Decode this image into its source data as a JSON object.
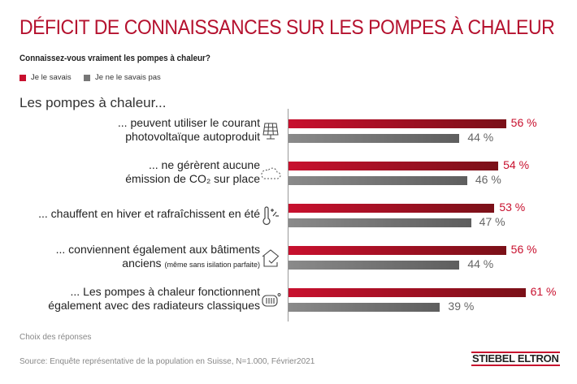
{
  "title": "DÉFICIT DE CONNAISSANCES SUR LES POMPES À CHALEUR",
  "question": "Connaissez-vous vraiment les pompes à chaleur?",
  "intro": "Les pompes à chaleur...",
  "footnote": "Choix des réponses",
  "source": "Source: Enquête représentative de la population en Suisse, N=1.000, Février2021",
  "logo": "STIEBEL ELTRON",
  "chart_data": {
    "type": "bar",
    "orientation": "horizontal",
    "categories": [
      {
        "line1": "... peuvent utiliser le courant",
        "line2": "photovoltaïque autoproduit",
        "note": "",
        "icon": "solar-panel-icon"
      },
      {
        "line1": "... ne gérèrent aucune",
        "line2": "émission de CO₂ sur place",
        "note": "",
        "icon": "cloud-icon"
      },
      {
        "line1": "... chauffent en hiver et rafraîchissent en été",
        "line2": "",
        "note": "",
        "icon": "thermometer-icon"
      },
      {
        "line1": "... conviennent également aux bâtiments",
        "line2": "anciens",
        "note": "(même sans isilation parfaite)",
        "icon": "house-check-icon"
      },
      {
        "line1": "... Les pompes à chaleur fonctionnent",
        "line2": "également avec des radiateurs classiques",
        "note": "",
        "icon": "radiator-icon"
      }
    ],
    "series": [
      {
        "name": "Je le savais",
        "color": "#c8102e",
        "values": [
          56,
          54,
          53,
          56,
          61
        ],
        "labels": [
          "56 %",
          "54 %",
          "53 %",
          "56 %",
          "61 %"
        ]
      },
      {
        "name": "Je ne le savais pas",
        "color": "#777777",
        "values": [
          44,
          46,
          47,
          44,
          39
        ],
        "labels": [
          "44 %",
          "46 %",
          "47 %",
          "44 %",
          "39 %"
        ]
      }
    ],
    "xlim": [
      0,
      100
    ],
    "legend": "top-left",
    "grid": false
  }
}
